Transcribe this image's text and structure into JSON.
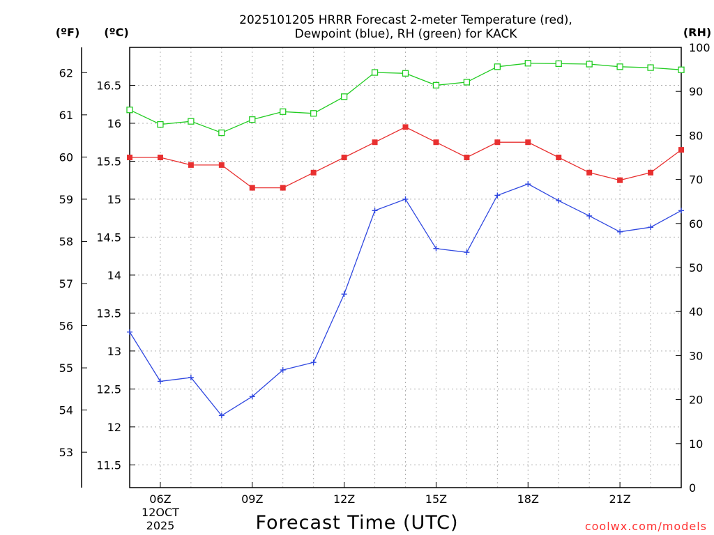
{
  "chart_data": {
    "type": "line",
    "title_line1": "2025101205 HRRR Forecast 2-meter Temperature (red),",
    "title_line2": "Dewpoint (blue), RH (green) for KACK",
    "left_unit_f": "(ºF)",
    "left_unit_c": "(ºC)",
    "right_unit": "(RH)",
    "xlabel": "Forecast Time (UTC)",
    "credit": "coolwx.com/models",
    "x_ticks": [
      "06Z",
      "09Z",
      "12Z",
      "15Z",
      "18Z",
      "21Z"
    ],
    "x_tick_hours": [
      6,
      9,
      12,
      15,
      18,
      21
    ],
    "date_line1": "12OCT",
    "date_line2": "2025",
    "x_range": [
      5,
      23
    ],
    "hours": [
      5,
      6,
      7,
      8,
      9,
      10,
      11,
      12,
      13,
      14,
      15,
      16,
      17,
      18,
      19,
      20,
      21,
      22,
      23
    ],
    "c_ticks": [
      "11.5",
      "12",
      "12.5",
      "13",
      "13.5",
      "14",
      "14.5",
      "15",
      "15.5",
      "16",
      "16.5"
    ],
    "c_range": [
      11.2,
      17.0
    ],
    "f_ticks": [
      "53",
      "54",
      "55",
      "56",
      "57",
      "58",
      "59",
      "60",
      "61",
      "62"
    ],
    "rh_ticks": [
      "0",
      "10",
      "20",
      "30",
      "40",
      "50",
      "60",
      "70",
      "80",
      "90",
      "100"
    ],
    "rh_range": [
      0,
      100
    ],
    "series": [
      {
        "name": "Temperature",
        "unit": "C",
        "color": "#e83030",
        "marker": "filled-square",
        "values": [
          15.55,
          15.55,
          15.45,
          15.45,
          15.15,
          15.15,
          15.35,
          15.55,
          15.75,
          15.95,
          15.75,
          15.55,
          15.75,
          15.75,
          15.55,
          15.35,
          15.25,
          15.35,
          15.65
        ]
      },
      {
        "name": "Dewpoint",
        "unit": "C",
        "color": "#3048e0",
        "marker": "plus",
        "values": [
          13.25,
          12.6,
          12.65,
          12.15,
          12.4,
          12.75,
          12.85,
          13.75,
          14.85,
          15.0,
          14.35,
          14.3,
          15.05,
          15.2,
          14.98,
          14.78,
          14.57,
          14.63,
          14.85
        ]
      },
      {
        "name": "RH",
        "unit": "%",
        "color": "#22cc22",
        "marker": "open-square",
        "values": [
          85.8,
          82.5,
          83.2,
          80.6,
          83.6,
          85.4,
          85.0,
          88.8,
          94.3,
          94.1,
          91.4,
          92.1,
          95.6,
          96.4,
          96.3,
          96.2,
          95.6,
          95.4,
          94.9
        ]
      }
    ]
  }
}
